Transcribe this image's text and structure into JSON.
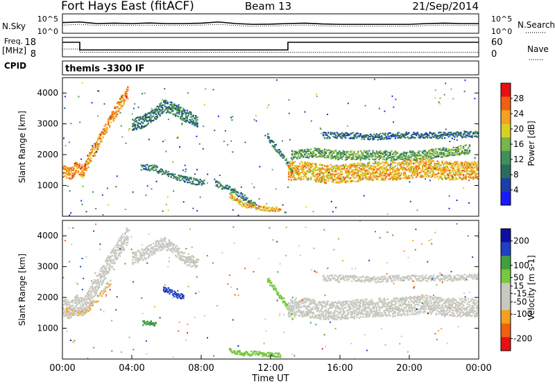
{
  "header": {
    "station": "Fort Hays East (fitACF)",
    "beam": "Beam 13",
    "date": "21/Sep/2014"
  },
  "mode_label": "themis -3300 IF",
  "chart_data": [
    {
      "type": "line",
      "name": "noise-panel",
      "left_label": "N.Sky",
      "right_label": "N.Search",
      "left_ticks": [
        "10^5",
        "10^0"
      ],
      "right_ticks": [
        "10^5",
        "10^0"
      ],
      "series": [
        {
          "name": "N.Sky",
          "style": "solid",
          "x": [
            0,
            1,
            2,
            3,
            4,
            5,
            6,
            7,
            8,
            9,
            10,
            11,
            12,
            13,
            14,
            15,
            16,
            17,
            18,
            19,
            20,
            21,
            22,
            23,
            24
          ],
          "y_frac": [
            0.55,
            0.58,
            0.5,
            0.52,
            0.5,
            0.53,
            0.5,
            0.5,
            0.52,
            0.58,
            0.5,
            0.46,
            0.47,
            0.5,
            0.52,
            0.48,
            0.46,
            0.46,
            0.46,
            0.46,
            0.46,
            0.5,
            0.52,
            0.5,
            0.5
          ]
        },
        {
          "name": "N.Search",
          "style": "dotted",
          "x": [
            0,
            1,
            2,
            3,
            4,
            5,
            6,
            7,
            8,
            9,
            10,
            11,
            12,
            13,
            14,
            15,
            16,
            17,
            18,
            19,
            20,
            21,
            22,
            23,
            24
          ],
          "y_frac": [
            0.42,
            0.46,
            0.4,
            0.42,
            0.4,
            0.42,
            0.4,
            0.4,
            0.42,
            0.46,
            0.4,
            0.36,
            0.38,
            0.4,
            0.42,
            0.38,
            0.36,
            0.36,
            0.36,
            0.36,
            0.36,
            0.4,
            0.42,
            0.4,
            0.4
          ]
        }
      ]
    },
    {
      "type": "line",
      "name": "freq-panel",
      "left_label": "Freq.",
      "left_unit": "[MHz]",
      "right_label": "Nave",
      "left_ticks": [
        18,
        8
      ],
      "right_ticks": [
        60,
        0
      ],
      "bottom_label": "CPID",
      "series": [
        {
          "name": "Freq",
          "style": "solid",
          "unit": "MHz",
          "x": [
            0,
            1.0,
            1.0,
            13.0,
            13.0,
            24
          ],
          "y": [
            16.5,
            16.5,
            11.0,
            11.0,
            16.5,
            16.5
          ]
        },
        {
          "name": "Nave",
          "style": "dotted",
          "x": [
            0,
            1.0,
            1.0,
            24
          ],
          "y": [
            24,
            24,
            14,
            14
          ]
        }
      ]
    },
    {
      "type": "heatmap",
      "name": "power-panel",
      "ylabel": "Slant Range [km]",
      "yticks": [
        1000,
        2000,
        3000,
        4000
      ],
      "ylim": [
        0,
        4500
      ],
      "colorbar": {
        "label": "Power [dB]",
        "ticks": [
          4,
          8,
          12,
          16,
          20,
          24,
          28
        ],
        "range": [
          0,
          32
        ]
      },
      "bands": [
        {
          "x": [
            0.0,
            0.4,
            0.8,
            1.2,
            1.6,
            2.0,
            2.6,
            3.2,
            3.8
          ],
          "y": [
            1500,
            1400,
            1600,
            1450,
            2000,
            2400,
            3000,
            3600,
            4100
          ],
          "width_km": 400,
          "power_db": 24
        },
        {
          "x": [
            4.0,
            4.6,
            5.2,
            5.8,
            6.4,
            7.0,
            7.8
          ],
          "y": [
            3000,
            3100,
            3300,
            3600,
            3500,
            3300,
            3100
          ],
          "width_km": 400,
          "power_db": 10
        },
        {
          "x": [
            4.5,
            5.2,
            6.0,
            6.8,
            7.6,
            8.2
          ],
          "y": [
            1600,
            1600,
            1400,
            1250,
            1150,
            1100
          ],
          "width_km": 200,
          "power_db": 10
        },
        {
          "x": [
            8.8,
            9.6,
            10.4,
            11.2
          ],
          "y": [
            1100,
            900,
            650,
            300
          ],
          "width_km": 200,
          "power_db": 10
        },
        {
          "x": [
            9.6,
            10.4,
            11.2,
            12.0,
            12.6
          ],
          "y": [
            700,
            400,
            300,
            250,
            250
          ],
          "width_km": 150,
          "power_db": 22
        },
        {
          "x": [
            11.8,
            12.2,
            12.6,
            13.0,
            13.3
          ],
          "y": [
            2600,
            2300,
            2000,
            1700,
            1300
          ],
          "width_km": 200,
          "power_db": 10
        },
        {
          "x": [
            13.0,
            14.0,
            15.0,
            16.0,
            17.0,
            18.0,
            19.0,
            20.0,
            21.0,
            22.0,
            23.0,
            24.0
          ],
          "y": [
            1500,
            1500,
            1400,
            1400,
            1450,
            1500,
            1500,
            1550,
            1600,
            1500,
            1500,
            1500
          ],
          "width_km": 600,
          "power_db": 22
        },
        {
          "x": [
            13.2,
            14.5,
            16.0,
            17.5,
            19.0,
            20.5,
            22.0,
            23.5
          ],
          "y": [
            2000,
            2100,
            2000,
            2000,
            2000,
            2000,
            2100,
            2200
          ],
          "width_km": 300,
          "power_db": 14
        },
        {
          "x": [
            15.0,
            16.5,
            18.0,
            19.5,
            21.0,
            22.5,
            24.0
          ],
          "y": [
            2650,
            2650,
            2600,
            2650,
            2650,
            2650,
            2700
          ],
          "width_km": 200,
          "power_db": 8
        }
      ]
    },
    {
      "type": "heatmap",
      "name": "velocity-panel",
      "ylabel": "Slant Range [km]",
      "yticks": [
        1000,
        2000,
        3000,
        4000
      ],
      "ylim": [
        0,
        4500
      ],
      "xlabel": "Time UT",
      "xticks": [
        "00:00",
        "04:00",
        "08:00",
        "12:00",
        "16:00",
        "20:00",
        "00:00"
      ],
      "xlim": [
        0,
        24
      ],
      "colorbar": {
        "label": "Velocity [m s-1]",
        "ticks": [
          200,
          100,
          50,
          15,
          -15,
          -50,
          -100,
          -200
        ],
        "range": [
          -250,
          250
        ]
      },
      "bands": [
        {
          "x": [
            0.0,
            0.4,
            0.8,
            1.2,
            1.6,
            2.0,
            2.6,
            3.2,
            3.8
          ],
          "y": [
            1700,
            1600,
            1800,
            1700,
            2100,
            2500,
            3100,
            3600,
            4100
          ],
          "width_km": 600,
          "vel": 0
        },
        {
          "x": [
            0.2,
            0.8,
            1.4,
            2.0,
            2.8
          ],
          "y": [
            1600,
            1500,
            1600,
            2000,
            2600
          ],
          "width_km": 200,
          "vel": -80
        },
        {
          "x": [
            4.0,
            4.6,
            5.2,
            5.8,
            6.4,
            7.0,
            7.8
          ],
          "y": [
            3300,
            3400,
            3600,
            3800,
            3600,
            3300,
            3100
          ],
          "width_km": 400,
          "vel": 0
        },
        {
          "x": [
            5.8,
            6.2,
            6.6,
            7.0
          ],
          "y": [
            2300,
            2200,
            2100,
            2050
          ],
          "width_km": 200,
          "vel": 180
        },
        {
          "x": [
            4.6,
            5.0,
            5.4
          ],
          "y": [
            1200,
            1200,
            1150
          ],
          "width_km": 150,
          "vel": 120
        },
        {
          "x": [
            9.6,
            10.4,
            11.2,
            12.0,
            12.6
          ],
          "y": [
            300,
            200,
            200,
            150,
            150
          ],
          "width_km": 150,
          "vel": 60
        },
        {
          "x": [
            11.8,
            12.2,
            12.6,
            13.0,
            13.3
          ],
          "y": [
            2600,
            2300,
            2000,
            1700,
            1300
          ],
          "width_km": 200,
          "vel": 60
        },
        {
          "x": [
            13.0,
            14.0,
            15.0,
            16.0,
            17.0,
            18.0,
            19.0,
            20.0,
            21.0,
            22.0,
            23.0,
            24.0
          ],
          "y": [
            1700,
            1700,
            1600,
            1600,
            1650,
            1700,
            1700,
            1750,
            1800,
            1700,
            1700,
            1700
          ],
          "width_km": 600,
          "vel": 0
        },
        {
          "x": [
            15.0,
            16.5,
            18.0,
            19.5,
            21.0,
            22.5,
            24.0
          ],
          "y": [
            2650,
            2650,
            2600,
            2650,
            2650,
            2650,
            2700
          ],
          "width_km": 200,
          "vel": 0
        }
      ]
    }
  ]
}
